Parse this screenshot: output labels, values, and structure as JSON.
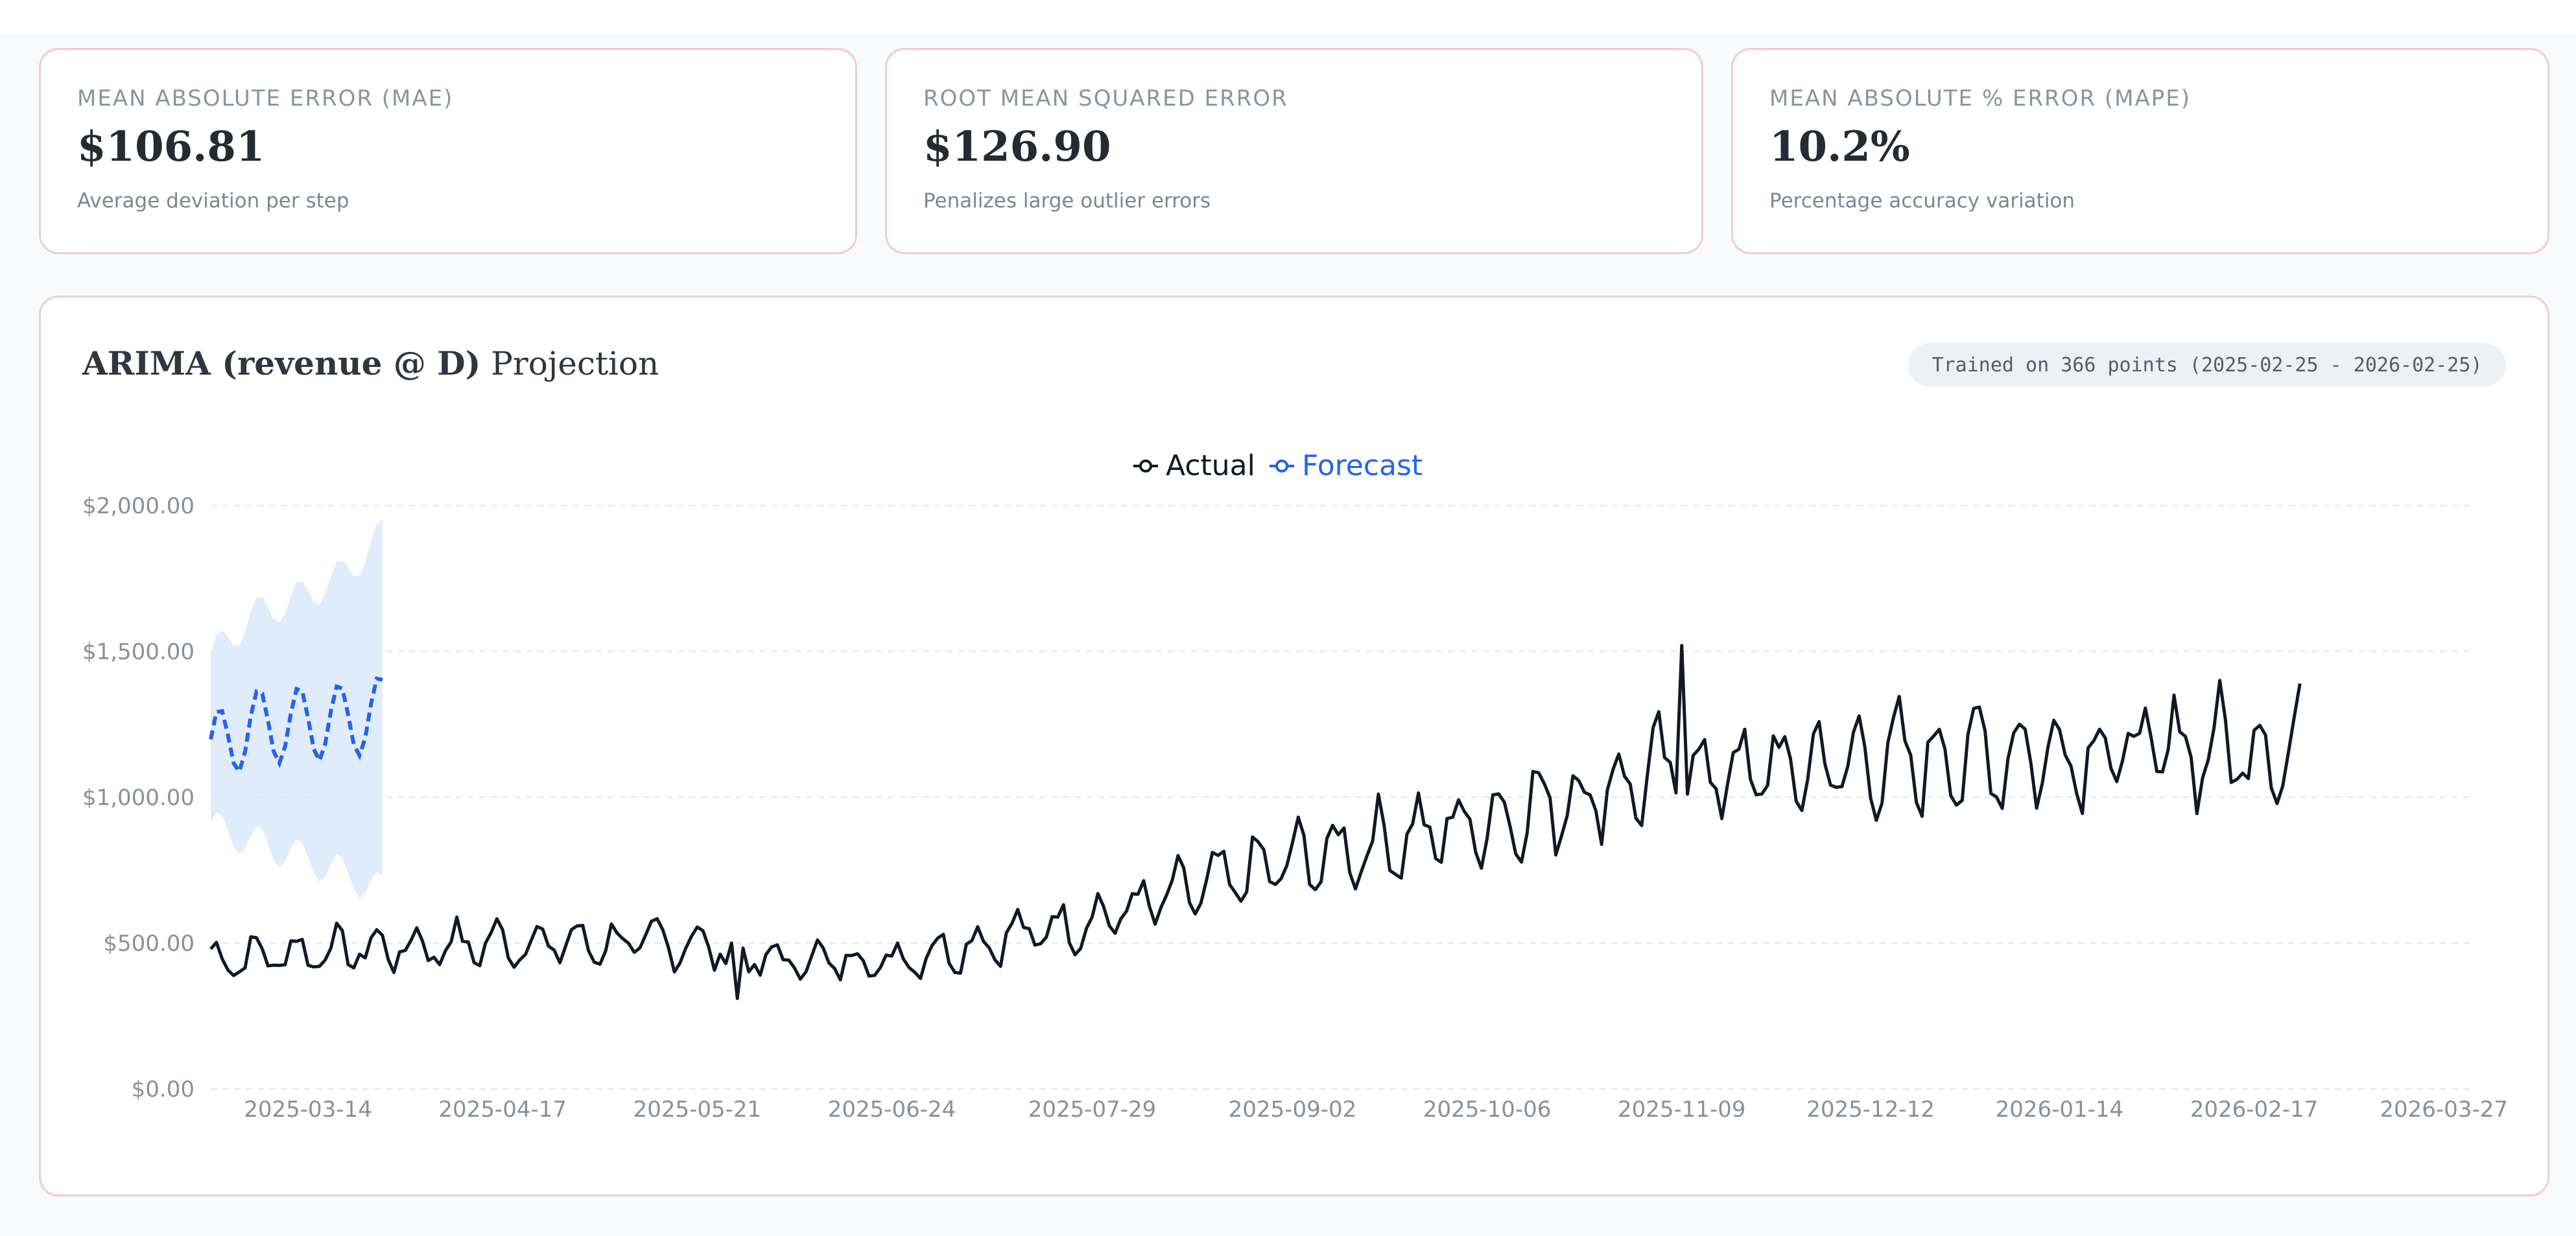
{
  "metrics": [
    {
      "label": "MEAN ABSOLUTE ERROR (MAE)",
      "value": "$106.81",
      "caption": "Average deviation per step"
    },
    {
      "label": "ROOT MEAN SQUARED ERROR",
      "value": "$126.90",
      "caption": "Penalizes large outlier errors"
    },
    {
      "label": "MEAN ABSOLUTE % ERROR (MAPE)",
      "value": "10.2%",
      "caption": "Percentage accuracy variation"
    }
  ],
  "chart_card": {
    "title_bold": "ARIMA (revenue @ D)",
    "title_rest": " Projection",
    "trained_info": "Trained on 366 points (2025-02-25 - 2026-02-25)"
  },
  "colors": {
    "actual": "#111827",
    "forecast": "#2563eb",
    "confidence_band": "#dbe7fb",
    "grid": "#e5e7eb",
    "card_border": "#f4c9cf"
  },
  "chart_data": {
    "type": "line",
    "legend": [
      "Actual",
      "Forecast"
    ],
    "legend_position": "top-center",
    "y_axis": {
      "ylim": [
        0,
        2000
      ],
      "ticks": [
        0,
        500,
        1000,
        1500,
        2000
      ],
      "tick_labels": [
        "$0.00",
        "$500.00",
        "$1,000.00",
        "$1,500.00",
        "$2,000.00"
      ]
    },
    "x_axis": {
      "start": "2025-02-25",
      "end": "2026-03-27",
      "tick_labels": [
        "2025-03-14",
        "2025-04-17",
        "2025-05-21",
        "2025-06-24",
        "2025-07-29",
        "2025-09-02",
        "2025-10-06",
        "2025-11-09",
        "2025-12-12",
        "2026-01-14",
        "2026-02-17",
        "2026-03-27"
      ]
    },
    "grid": true,
    "series": [
      {
        "name": "Actual",
        "style": "solid",
        "dates": [
          "2025-02-25",
          "2025-03-14",
          "2025-04-17",
          "2025-05-21",
          "2025-06-01",
          "2025-06-24",
          "2025-07-29",
          "2025-09-02",
          "2025-10-06",
          "2025-11-09",
          "2025-11-15",
          "2025-12-12",
          "2026-01-14",
          "2026-02-17",
          "2026-02-25"
        ],
        "trend": [
          440,
          470,
          500,
          500,
          440,
          440,
          580,
          780,
          920,
          1100,
          1080,
          1120,
          1160,
          1170,
          1160
        ],
        "peaks": [
          {
            "date": "2025-11-09",
            "value": 1520
          },
          {
            "date": "2025-05-28",
            "value": 310
          }
        ]
      },
      {
        "name": "Forecast",
        "style": "dashed",
        "dates": [
          "2025-02-25",
          "2025-03-04",
          "2025-03-12",
          "2025-03-20",
          "2025-03-27"
        ],
        "trend": [
          1160,
          1240,
          1250,
          1260,
          1290
        ],
        "band_lower": [
          900,
          850,
          800,
          740,
          680
        ],
        "band_upper": [
          1480,
          1620,
          1680,
          1760,
          1900
        ]
      }
    ]
  }
}
